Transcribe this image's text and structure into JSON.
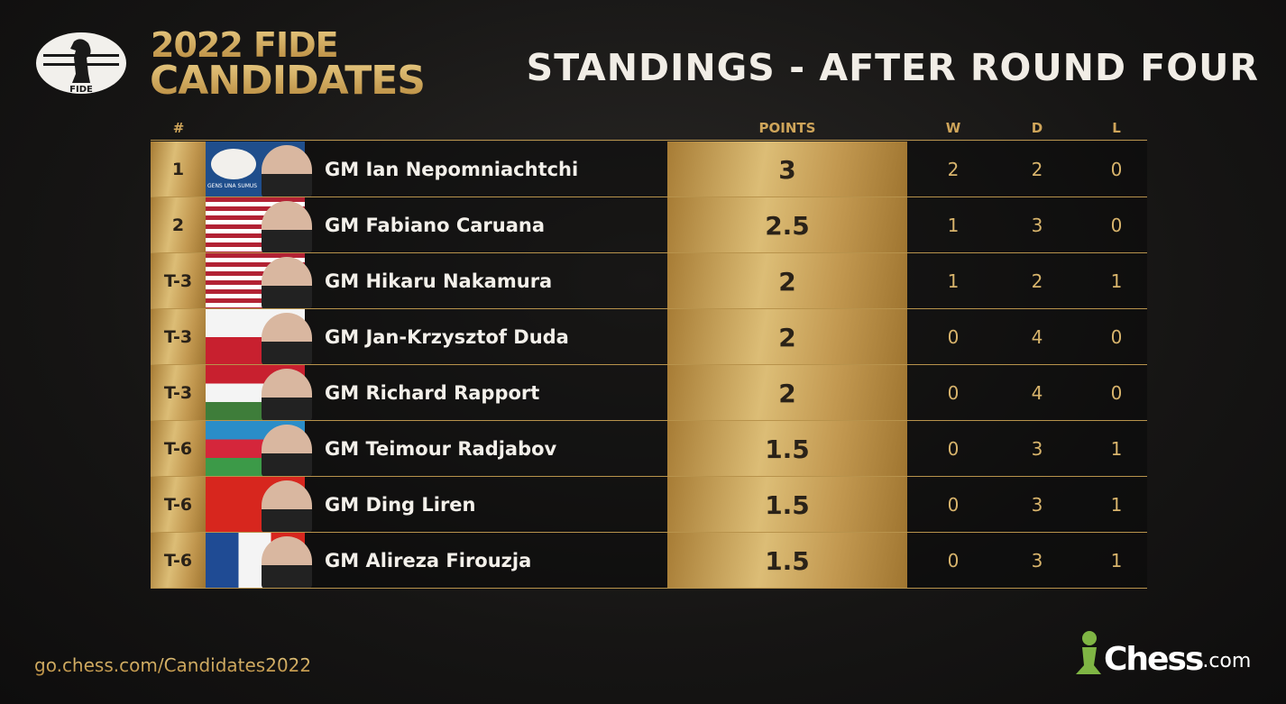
{
  "header": {
    "logo_text": "FIDE",
    "event_line1": "2022 FIDE",
    "event_line2": "CANDIDATES",
    "title": "STANDINGS - AFTER ROUND FOUR"
  },
  "table": {
    "columns": [
      "#",
      "POINTS",
      "W",
      "D",
      "L"
    ],
    "fide_flag_text": "GENS UNA SUMUS",
    "rows": [
      {
        "rank": "1",
        "name": "GM Ian Nepomniachtchi",
        "points": 3,
        "w": 2,
        "d": 2,
        "l": 0
      },
      {
        "rank": "2",
        "name": "GM Fabiano Caruana",
        "points": 2.5,
        "w": 1,
        "d": 3,
        "l": 0
      },
      {
        "rank": "T-3",
        "name": "GM Hikaru Nakamura",
        "points": 2,
        "w": 1,
        "d": 2,
        "l": 1
      },
      {
        "rank": "T-3",
        "name": "GM Jan-Krzysztof Duda",
        "points": 2,
        "w": 0,
        "d": 4,
        "l": 0
      },
      {
        "rank": "T-3",
        "name": "GM Richard Rapport",
        "points": 2,
        "w": 0,
        "d": 4,
        "l": 0
      },
      {
        "rank": "T-6",
        "name": "GM Teimour Radjabov",
        "points": 1.5,
        "w": 0,
        "d": 3,
        "l": 1
      },
      {
        "rank": "T-6",
        "name": "GM Ding Liren",
        "points": 1.5,
        "w": 0,
        "d": 3,
        "l": 1
      },
      {
        "rank": "T-6",
        "name": "GM Alireza Firouzja",
        "points": 1.5,
        "w": 0,
        "d": 3,
        "l": 1
      }
    ]
  },
  "footer": {
    "url": "go.chess.com/Candidates2022",
    "logo_text": "Chess",
    "logo_suffix": ".com"
  }
}
